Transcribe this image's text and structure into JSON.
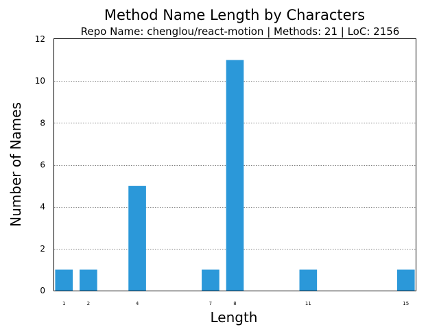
{
  "chart_data": {
    "type": "bar",
    "title": "Method Name Length by Characters",
    "subtitle": "Repo Name: chenglou/react-motion | Methods: 21 | LoC: 2156",
    "xlabel": "Length",
    "ylabel": "Number of Names",
    "categories": [
      "1",
      "2",
      "4",
      "7",
      "8",
      "11",
      "15"
    ],
    "x": [
      1,
      2,
      4,
      7,
      8,
      11,
      15
    ],
    "values": [
      1,
      1,
      5,
      1,
      11,
      1,
      1
    ],
    "ylim": [
      0,
      12
    ],
    "yticks": [
      0,
      2,
      4,
      6,
      8,
      10,
      12
    ],
    "xlim": [
      0.6,
      15.4
    ],
    "grid": "y-dotted",
    "bar_color": "#2b98d9"
  }
}
